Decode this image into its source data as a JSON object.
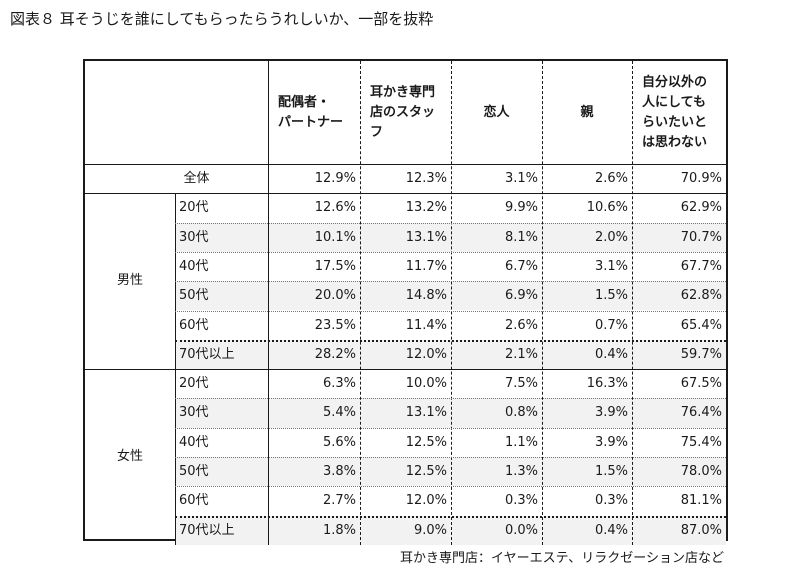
{
  "title": "図表８ 耳そうじを誰にしてもらったらうれしいか、一部を抜粋",
  "headers": [
    "配偶者・パートナー",
    "耳かき専門店のスタッフ",
    "恋人",
    "親",
    "自分以外の人にしてもらいたいとは思わない"
  ],
  "header_lines": [
    [
      "配偶者・",
      "パートナー"
    ],
    [
      "耳かき専門",
      "店のスタッ",
      "フ"
    ],
    [
      "恋人"
    ],
    [
      "親"
    ],
    [
      "自分以外の",
      "人にしても",
      "らいたいと",
      "は思わない"
    ]
  ],
  "total_row": {
    "label": "全体",
    "values": [
      "12.9%",
      "12.3%",
      "3.1%",
      "2.6%",
      "70.9%"
    ]
  },
  "groups": [
    {
      "label": "男性",
      "rows": [
        {
          "age": "20代",
          "values": [
            "12.6%",
            "13.2%",
            "9.9%",
            "10.6%",
            "62.9%"
          ]
        },
        {
          "age": "30代",
          "values": [
            "10.1%",
            "13.1%",
            "8.1%",
            "2.0%",
            "70.7%"
          ]
        },
        {
          "age": "40代",
          "values": [
            "17.5%",
            "11.7%",
            "6.7%",
            "3.1%",
            "67.7%"
          ]
        },
        {
          "age": "50代",
          "values": [
            "20.0%",
            "14.8%",
            "6.9%",
            "1.5%",
            "62.8%"
          ]
        },
        {
          "age": "60代",
          "values": [
            "23.5%",
            "11.4%",
            "2.6%",
            "0.7%",
            "65.4%"
          ]
        },
        {
          "age": "70代以上",
          "values": [
            "28.2%",
            "12.0%",
            "2.1%",
            "0.4%",
            "59.7%"
          ]
        }
      ]
    },
    {
      "label": "女性",
      "rows": [
        {
          "age": "20代",
          "values": [
            "6.3%",
            "10.0%",
            "7.5%",
            "16.3%",
            "67.5%"
          ]
        },
        {
          "age": "30代",
          "values": [
            "5.4%",
            "13.1%",
            "0.8%",
            "3.9%",
            "76.4%"
          ]
        },
        {
          "age": "40代",
          "values": [
            "5.6%",
            "12.5%",
            "1.1%",
            "3.9%",
            "75.4%"
          ]
        },
        {
          "age": "50代",
          "values": [
            "3.8%",
            "12.5%",
            "1.3%",
            "1.5%",
            "78.0%"
          ]
        },
        {
          "age": "60代",
          "values": [
            "2.7%",
            "12.0%",
            "0.3%",
            "0.3%",
            "81.1%"
          ]
        },
        {
          "age": "70代以上",
          "values": [
            "1.8%",
            "9.0%",
            "0.0%",
            "0.4%",
            "87.0%"
          ]
        }
      ]
    }
  ],
  "footnote": "耳かき専門店：イヤーエステ、リラクゼーション店など"
}
